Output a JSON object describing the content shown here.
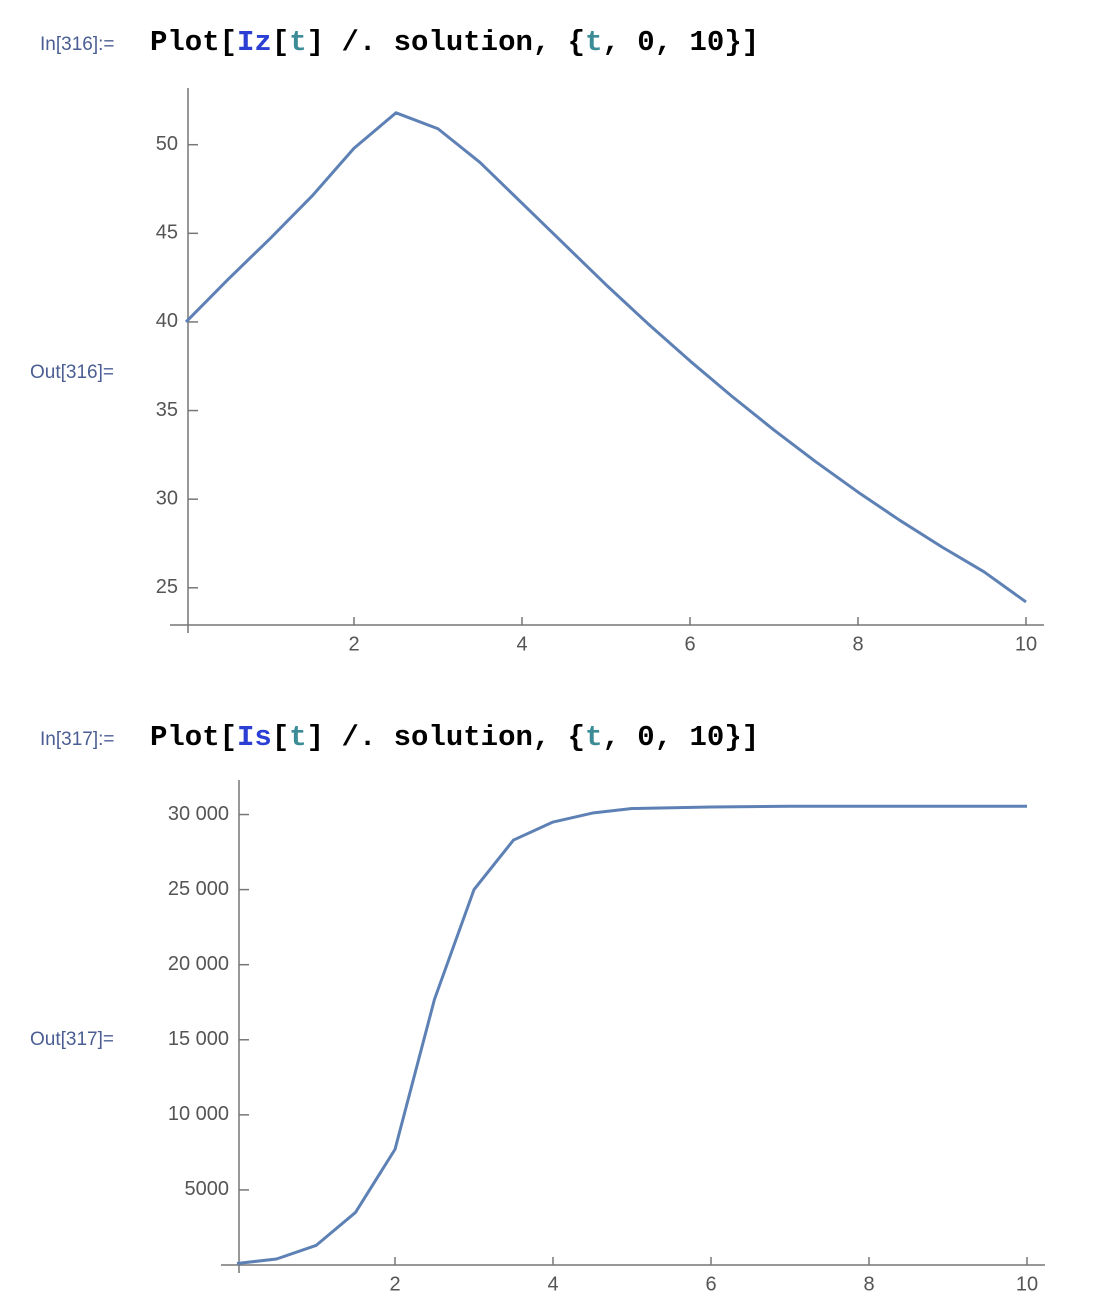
{
  "cells": [
    {
      "in_label": "In[316]:=",
      "code": [
        {
          "text": "Plot[",
          "color": "#000000"
        },
        {
          "text": "Iz",
          "color": "#2b3fd4"
        },
        {
          "text": "[",
          "color": "#000000"
        },
        {
          "text": "t",
          "color": "#3b8c96"
        },
        {
          "text": "] /. solution, {",
          "color": "#000000"
        },
        {
          "text": "t",
          "color": "#3b8c96"
        },
        {
          "text": ", 0, 10}]",
          "color": "#000000"
        }
      ],
      "out_label": "Out[316]="
    },
    {
      "in_label": "In[317]:=",
      "code": [
        {
          "text": "Plot[",
          "color": "#000000"
        },
        {
          "text": "Is",
          "color": "#2b3fd4"
        },
        {
          "text": "[",
          "color": "#000000"
        },
        {
          "text": "t",
          "color": "#3b8c96"
        },
        {
          "text": "] /. solution, {",
          "color": "#000000"
        },
        {
          "text": "t",
          "color": "#3b8c96"
        },
        {
          "text": ", 0, 10}]",
          "color": "#000000"
        }
      ],
      "out_label": "Out[317]="
    }
  ],
  "chart_data": [
    {
      "type": "line",
      "x": [
        0,
        0.5,
        1,
        1.5,
        2,
        2.5,
        3,
        3.5,
        4,
        4.5,
        5,
        5.5,
        6,
        6.5,
        7,
        7.5,
        8,
        8.5,
        9,
        9.5,
        10
      ],
      "series": [
        {
          "color": "#5e81b5",
          "values": [
            40,
            42.4,
            44.7,
            47.1,
            49.8,
            51.8,
            50.9,
            49.0,
            46.7,
            44.4,
            42.1,
            39.9,
            37.8,
            35.8,
            33.9,
            32.1,
            30.4,
            28.8,
            27.3,
            25.9,
            24.2
          ]
        }
      ],
      "xlim": [
        0,
        10
      ],
      "ylim": [
        22.9,
        53.2
      ],
      "xticks": [
        2,
        4,
        6,
        8,
        10
      ],
      "yticks": [
        25,
        30,
        35,
        40,
        45,
        50
      ]
    },
    {
      "type": "line",
      "x": [
        0,
        0.5,
        1,
        1.5,
        2,
        2.5,
        3,
        3.5,
        4,
        4.5,
        5,
        6,
        7,
        8,
        9,
        10
      ],
      "series": [
        {
          "color": "#5e81b5",
          "values": [
            100,
            400,
            1300,
            3500,
            7700,
            17700,
            25000,
            28300,
            29500,
            30100,
            30400,
            30500,
            30550,
            30550,
            30550,
            30550
          ]
        }
      ],
      "xlim": [
        0,
        10
      ],
      "ylim": [
        0,
        32300
      ],
      "xticks": [
        2,
        4,
        6,
        8,
        10
      ],
      "yticks": [
        {
          "value": 5000,
          "label": "5000"
        },
        {
          "value": 10000,
          "label": "10 000"
        },
        {
          "value": 15000,
          "label": "15 000"
        },
        {
          "value": 20000,
          "label": "20 000"
        },
        {
          "value": 25000,
          "label": "25 000"
        },
        {
          "value": 30000,
          "label": "30 000"
        }
      ]
    }
  ]
}
